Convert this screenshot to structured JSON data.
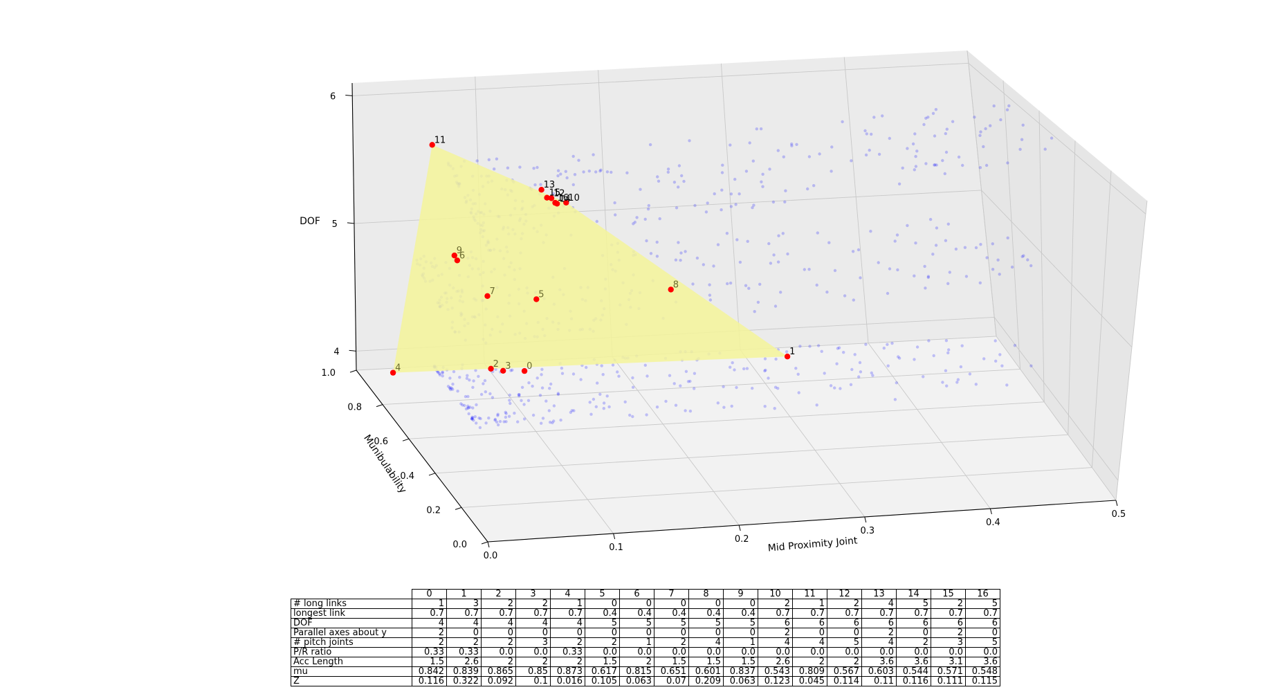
{
  "chart_data": {
    "type": "scatter",
    "projection": "3d",
    "xlabel": "Mid Proximity Joint",
    "ylabel": "Munibulability",
    "zlabel": "DOF",
    "xlim": [
      0,
      0.5
    ],
    "ylim": [
      0,
      1.0
    ],
    "zlim": [
      3.85,
      6.1
    ],
    "x_ticks": [
      "0.0",
      "0.1",
      "0.2",
      "0.3",
      "0.4",
      "0.5"
    ],
    "y_ticks": [
      "0.0",
      "0.2",
      "0.4",
      "0.6",
      "0.8",
      "1.0"
    ],
    "z_ticks": [
      "4",
      "5",
      "6"
    ],
    "grid": true,
    "colors": {
      "cloud": "#0000ff",
      "highlight": "#ff0000",
      "hull": "#f5f59a"
    },
    "highlighted_points": [
      {
        "label": "0",
        "x": 0.116,
        "y": 0.842,
        "z": 4
      },
      {
        "label": "1",
        "x": 0.322,
        "y": 0.839,
        "z": 4
      },
      {
        "label": "2",
        "x": 0.092,
        "y": 0.865,
        "z": 4
      },
      {
        "label": "3",
        "x": 0.1,
        "y": 0.85,
        "z": 4
      },
      {
        "label": "4",
        "x": 0.016,
        "y": 0.873,
        "z": 4
      },
      {
        "label": "5",
        "x": 0.105,
        "y": 0.617,
        "z": 5
      },
      {
        "label": "6",
        "x": 0.063,
        "y": 0.815,
        "z": 5
      },
      {
        "label": "7",
        "x": 0.07,
        "y": 0.651,
        "z": 5
      },
      {
        "label": "8",
        "x": 0.209,
        "y": 0.601,
        "z": 5
      },
      {
        "label": "9",
        "x": 0.063,
        "y": 0.837,
        "z": 5
      },
      {
        "label": "10",
        "x": 0.123,
        "y": 0.543,
        "z": 6
      },
      {
        "label": "11",
        "x": 0.045,
        "y": 0.809,
        "z": 6
      },
      {
        "label": "12",
        "x": 0.114,
        "y": 0.567,
        "z": 6
      },
      {
        "label": "13",
        "x": 0.11,
        "y": 0.603,
        "z": 6
      },
      {
        "label": "14",
        "x": 0.116,
        "y": 0.544,
        "z": 6
      },
      {
        "label": "15",
        "x": 0.111,
        "y": 0.571,
        "z": 6
      },
      {
        "label": "16",
        "x": 0.115,
        "y": 0.548,
        "z": 6
      }
    ],
    "hull_point_labels": [
      "4",
      "11",
      "10",
      "1"
    ],
    "cloud_clusters": [
      {
        "z": 6,
        "x_range": [
          0.05,
          0.5
        ],
        "y_range": [
          0.4,
          0.75
        ]
      },
      {
        "z": 5,
        "x_range": [
          0.03,
          0.5
        ],
        "y_range": [
          0.45,
          0.85
        ]
      },
      {
        "z": 4,
        "x_range": [
          0.05,
          0.5
        ],
        "y_range": [
          0.55,
          0.9
        ]
      }
    ],
    "table": {
      "columns": [
        "0",
        "1",
        "2",
        "3",
        "4",
        "5",
        "6",
        "7",
        "8",
        "9",
        "10",
        "11",
        "12",
        "13",
        "14",
        "15",
        "16"
      ],
      "rows": [
        {
          "label": "# long links",
          "cells": [
            "1",
            "3",
            "2",
            "2",
            "1",
            "0",
            "0",
            "0",
            "0",
            "0",
            "2",
            "1",
            "2",
            "4",
            "5",
            "2",
            "5"
          ]
        },
        {
          "label": "longest link",
          "cells": [
            "0.7",
            "0.7",
            "0.7",
            "0.7",
            "0.7",
            "0.4",
            "0.4",
            "0.4",
            "0.4",
            "0.4",
            "0.7",
            "0.7",
            "0.7",
            "0.7",
            "0.7",
            "0.7",
            "0.7"
          ]
        },
        {
          "label": "DOF",
          "cells": [
            "4",
            "4",
            "4",
            "4",
            "4",
            "5",
            "5",
            "5",
            "5",
            "5",
            "6",
            "6",
            "6",
            "6",
            "6",
            "6",
            "6"
          ]
        },
        {
          "label": "Parallel axes about y",
          "cells": [
            "2",
            "0",
            "0",
            "0",
            "0",
            "0",
            "0",
            "0",
            "0",
            "0",
            "2",
            "0",
            "0",
            "2",
            "0",
            "2",
            "0"
          ]
        },
        {
          "label": "# pitch joints",
          "cells": [
            "2",
            "2",
            "2",
            "3",
            "2",
            "2",
            "1",
            "2",
            "4",
            "1",
            "4",
            "4",
            "5",
            "4",
            "2",
            "3",
            "5"
          ]
        },
        {
          "label": "P/R ratio",
          "cells": [
            "0.33",
            "0.33",
            "0.0",
            "0.0",
            "0.33",
            "0.0",
            "0.0",
            "0.0",
            "0.0",
            "0.0",
            "0.0",
            "0.0",
            "0.0",
            "0.0",
            "0.0",
            "0.0",
            "0.0"
          ]
        },
        {
          "label": "Acc Length",
          "cells": [
            "1.5",
            "2.6",
            "2",
            "2",
            "2",
            "1.5",
            "2",
            "1.5",
            "1.5",
            "1.5",
            "2.6",
            "2",
            "2",
            "3.6",
            "3.6",
            "3.1",
            "3.6"
          ]
        },
        {
          "label": "mu",
          "cells": [
            "0.842",
            "0.839",
            "0.865",
            "0.85",
            "0.873",
            "0.617",
            "0.815",
            "0.651",
            "0.601",
            "0.837",
            "0.543",
            "0.809",
            "0.567",
            "0.603",
            "0.544",
            "0.571",
            "0.548"
          ]
        },
        {
          "label": "Z",
          "cells": [
            "0.116",
            "0.322",
            "0.092",
            "0.1",
            "0.016",
            "0.105",
            "0.063",
            "0.07",
            "0.209",
            "0.063",
            "0.123",
            "0.045",
            "0.114",
            "0.11",
            "0.116",
            "0.111",
            "0.115"
          ]
        }
      ]
    }
  }
}
